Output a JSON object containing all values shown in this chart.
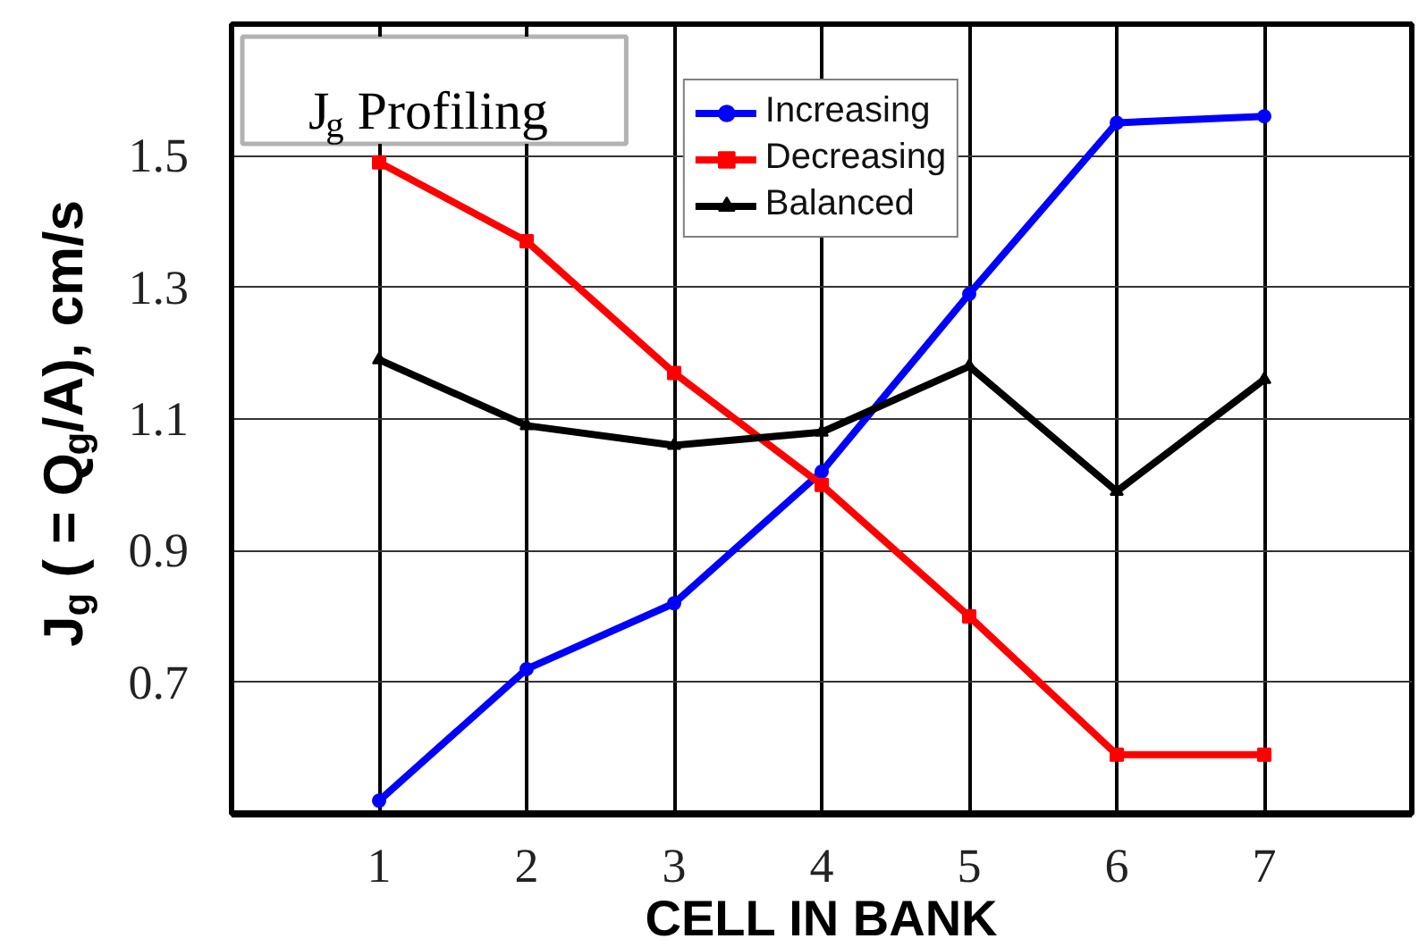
{
  "chart_data": {
    "type": "line",
    "title": "J$_{g}$ Profiling",
    "xlabel": "CELL IN BANK",
    "ylabel": "J$_{g}$ ( = Q$_{g}$/A), cm/s",
    "x": [
      1,
      2,
      3,
      4,
      5,
      6,
      7
    ],
    "xlim": [
      0,
      8
    ],
    "xticks": [
      1,
      2,
      3,
      4,
      5,
      6,
      7
    ],
    "ylim": [
      0.5,
      1.7
    ],
    "yticks": [
      0.7,
      0.9,
      1.1,
      1.3,
      1.5
    ],
    "grid": true,
    "legend": "top",
    "line_style": "solid",
    "series": [
      {
        "name": "Increasing",
        "color": "#0000ff",
        "marker": "circle",
        "values": [
          0.52,
          0.72,
          0.82,
          1.02,
          1.29,
          1.55,
          1.56
        ]
      },
      {
        "name": "Decreasing",
        "color": "#ff0000",
        "marker": "square",
        "values": [
          1.49,
          1.37,
          1.17,
          1.0,
          0.8,
          0.59,
          0.59
        ]
      },
      {
        "name": "Balanced",
        "color": "#000000",
        "marker": "triangle",
        "values": [
          1.19,
          1.09,
          1.06,
          1.08,
          1.18,
          0.99,
          1.16
        ]
      }
    ]
  }
}
